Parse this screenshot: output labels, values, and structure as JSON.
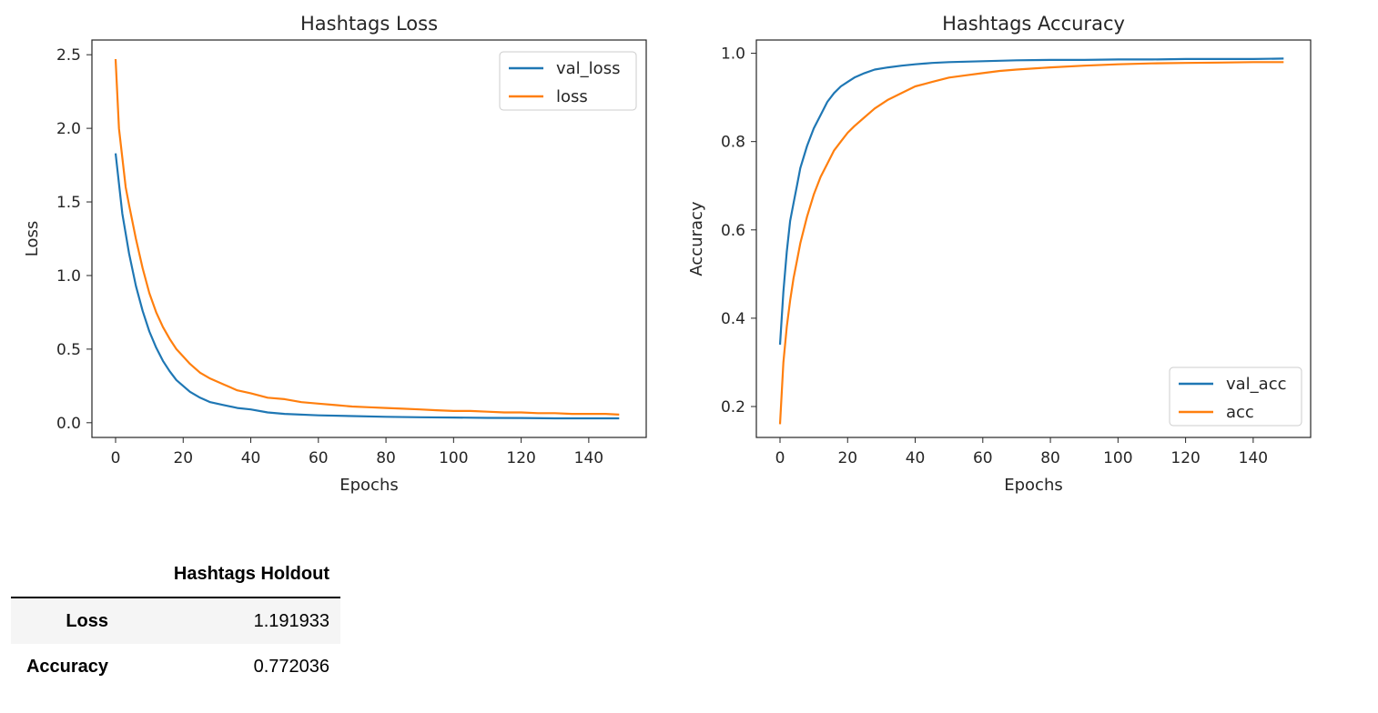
{
  "chart_data": [
    {
      "type": "line",
      "title": "Hashtags Loss",
      "xlabel": "Epochs",
      "ylabel": "Loss",
      "xlim": [
        -7,
        157
      ],
      "ylim": [
        -0.1,
        2.6
      ],
      "xticks": [
        0,
        20,
        40,
        60,
        80,
        100,
        120,
        140
      ],
      "yticks": [
        0.0,
        0.5,
        1.0,
        1.5,
        2.0,
        2.5
      ],
      "ytick_format": 1,
      "legend_position": "top-right",
      "series": [
        {
          "name": "val_loss",
          "color": "#1f77b4",
          "x": [
            0,
            2,
            4,
            6,
            8,
            10,
            12,
            14,
            16,
            18,
            20,
            22,
            25,
            28,
            32,
            36,
            40,
            45,
            50,
            60,
            70,
            80,
            90,
            100,
            110,
            120,
            130,
            140,
            149
          ],
          "y": [
            1.83,
            1.42,
            1.15,
            0.93,
            0.76,
            0.62,
            0.51,
            0.42,
            0.35,
            0.29,
            0.25,
            0.21,
            0.17,
            0.14,
            0.12,
            0.1,
            0.09,
            0.07,
            0.06,
            0.05,
            0.045,
            0.04,
            0.037,
            0.035,
            0.033,
            0.032,
            0.03,
            0.03,
            0.03
          ]
        },
        {
          "name": "loss",
          "color": "#ff7f0e",
          "x": [
            0,
            1,
            2,
            3,
            4,
            6,
            8,
            10,
            12,
            14,
            16,
            18,
            20,
            22,
            25,
            28,
            32,
            36,
            40,
            45,
            50,
            55,
            60,
            65,
            70,
            75,
            80,
            85,
            90,
            95,
            100,
            105,
            110,
            115,
            120,
            125,
            130,
            135,
            140,
            145,
            149
          ],
          "y": [
            2.47,
            2.0,
            1.8,
            1.6,
            1.48,
            1.25,
            1.05,
            0.88,
            0.75,
            0.65,
            0.57,
            0.5,
            0.45,
            0.4,
            0.34,
            0.3,
            0.26,
            0.22,
            0.2,
            0.17,
            0.16,
            0.14,
            0.13,
            0.12,
            0.11,
            0.105,
            0.1,
            0.095,
            0.09,
            0.085,
            0.08,
            0.08,
            0.075,
            0.07,
            0.07,
            0.065,
            0.065,
            0.06,
            0.06,
            0.06,
            0.055
          ]
        }
      ]
    },
    {
      "type": "line",
      "title": "Hashtags Accuracy",
      "xlabel": "Epochs",
      "ylabel": "Accuracy",
      "xlim": [
        -7,
        157
      ],
      "ylim": [
        0.13,
        1.03
      ],
      "xticks": [
        0,
        20,
        40,
        60,
        80,
        100,
        120,
        140
      ],
      "yticks": [
        0.2,
        0.4,
        0.6,
        0.8,
        1.0
      ],
      "ytick_format": 1,
      "legend_position": "lower-right",
      "series": [
        {
          "name": "val_acc",
          "color": "#1f77b4",
          "x": [
            0,
            1,
            2,
            3,
            4,
            5,
            6,
            8,
            10,
            12,
            14,
            16,
            18,
            20,
            22,
            25,
            28,
            32,
            36,
            40,
            45,
            50,
            60,
            70,
            80,
            90,
            100,
            110,
            120,
            130,
            140,
            149
          ],
          "y": [
            0.34,
            0.46,
            0.55,
            0.62,
            0.66,
            0.7,
            0.74,
            0.79,
            0.83,
            0.86,
            0.89,
            0.91,
            0.925,
            0.935,
            0.945,
            0.955,
            0.963,
            0.968,
            0.972,
            0.975,
            0.978,
            0.98,
            0.982,
            0.984,
            0.985,
            0.985,
            0.986,
            0.986,
            0.987,
            0.987,
            0.987,
            0.988
          ]
        },
        {
          "name": "acc",
          "color": "#ff7f0e",
          "x": [
            0,
            1,
            2,
            3,
            4,
            5,
            6,
            8,
            10,
            12,
            14,
            16,
            18,
            20,
            22,
            25,
            28,
            32,
            36,
            40,
            45,
            50,
            55,
            60,
            65,
            70,
            80,
            90,
            100,
            110,
            120,
            130,
            140,
            149
          ],
          "y": [
            0.16,
            0.3,
            0.38,
            0.44,
            0.49,
            0.53,
            0.57,
            0.63,
            0.68,
            0.72,
            0.75,
            0.78,
            0.8,
            0.82,
            0.835,
            0.855,
            0.875,
            0.895,
            0.91,
            0.925,
            0.935,
            0.945,
            0.95,
            0.955,
            0.96,
            0.963,
            0.968,
            0.972,
            0.975,
            0.977,
            0.978,
            0.979,
            0.98,
            0.98
          ]
        }
      ]
    }
  ],
  "table": {
    "header": "Hashtags Holdout",
    "rows": [
      {
        "label": "Loss",
        "value": "1.191933"
      },
      {
        "label": "Accuracy",
        "value": "0.772036"
      }
    ]
  }
}
